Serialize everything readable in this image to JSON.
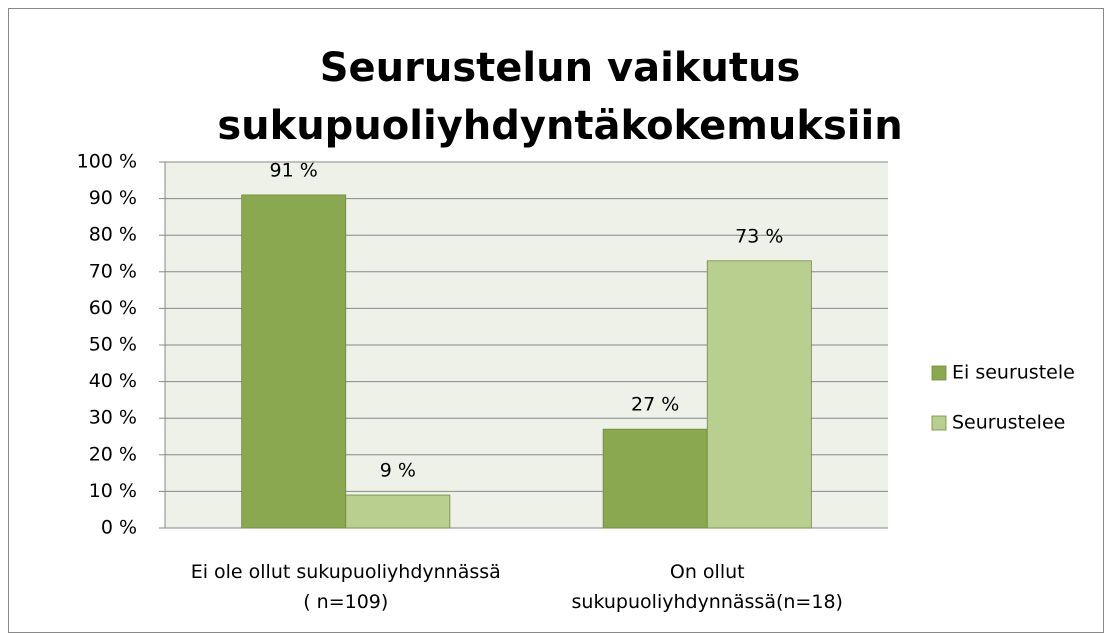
{
  "chart_data": {
    "type": "bar",
    "title": "Seurustelun vaikutus\nsukupuoliyhdyntäkokemuksiin",
    "categories": [
      "Ei ole ollut sukupuoliyhdynnässä\n( n=109)",
      "On ollut\nsukupuoliyhdynnässä(n=18)"
    ],
    "series": [
      {
        "name": "Ei seurustele",
        "color": "#8aa84f",
        "values": [
          91,
          27
        ],
        "value_labels": [
          "91 %",
          "27 %"
        ]
      },
      {
        "name": "Seurustelee",
        "color": "#b9cf8f",
        "values": [
          9,
          73
        ],
        "value_labels": [
          "9 %",
          "73 %"
        ]
      }
    ],
    "ylim": [
      0,
      100
    ],
    "yticks": [
      {
        "value": 0,
        "label": "0 %"
      },
      {
        "value": 10,
        "label": "10 %"
      },
      {
        "value": 20,
        "label": "20 %"
      },
      {
        "value": 30,
        "label": "30 %"
      },
      {
        "value": 40,
        "label": "40 %"
      },
      {
        "value": 50,
        "label": "50 %"
      },
      {
        "value": 60,
        "label": "60 %"
      },
      {
        "value": 70,
        "label": "70 %"
      },
      {
        "value": 80,
        "label": "80 %"
      },
      {
        "value": 90,
        "label": "90 %"
      },
      {
        "value": 100,
        "label": "100 %"
      }
    ],
    "grid": true,
    "legend": "right"
  }
}
